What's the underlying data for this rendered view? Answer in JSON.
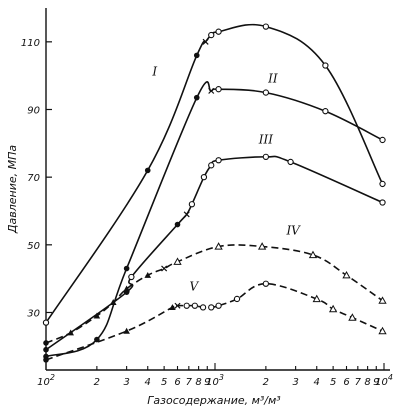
{
  "chart_data": {
    "type": "line",
    "xlabel": "Газосодержание, м³/м³",
    "ylabel": "Давление, МПа",
    "xscale": "log",
    "xlim": [
      100,
      10000
    ],
    "ylim": [
      13,
      120
    ],
    "grid": false,
    "legend": "none",
    "x_ticks": [
      {
        "value": 100,
        "base": "10",
        "exp": "2"
      },
      {
        "value": 200,
        "label": "2"
      },
      {
        "value": 300,
        "label": "3"
      },
      {
        "value": 400,
        "label": "4"
      },
      {
        "value": 500,
        "label": "5"
      },
      {
        "value": 600,
        "label": "6"
      },
      {
        "value": 700,
        "label": "7"
      },
      {
        "value": 800,
        "label": "8"
      },
      {
        "value": 900,
        "label": "9"
      },
      {
        "value": 1000,
        "base": "10",
        "exp": "3"
      },
      {
        "value": 2000,
        "label": "2"
      },
      {
        "value": 3000,
        "label": "3"
      },
      {
        "value": 4000,
        "label": "4"
      },
      {
        "value": 5000,
        "label": "5"
      },
      {
        "value": 6000,
        "label": "6"
      },
      {
        "value": 7000,
        "label": "7"
      },
      {
        "value": 8000,
        "label": "8"
      },
      {
        "value": 9000,
        "label": "9"
      },
      {
        "value": 10000,
        "base": "10",
        "exp": "4"
      }
    ],
    "y_ticks": [
      30,
      50,
      70,
      90,
      110
    ],
    "series": [
      {
        "name": "I",
        "style": "solid",
        "label_at": [
          440,
          100
        ],
        "points": [
          {
            "x": 100,
            "y": 27,
            "m": "o"
          },
          {
            "x": 400,
            "y": 72,
            "m": "fill"
          },
          {
            "x": 780,
            "y": 106,
            "m": "fill"
          },
          {
            "x": 880,
            "y": 110,
            "m": "x"
          },
          {
            "x": 950,
            "y": 112,
            "m": "o"
          },
          {
            "x": 1050,
            "y": 113,
            "m": "o"
          },
          {
            "x": 2000,
            "y": 114.5,
            "m": "o"
          },
          {
            "x": 4500,
            "y": 103,
            "m": "o"
          },
          {
            "x": 9800,
            "y": 68,
            "m": "o"
          }
        ]
      },
      {
        "name": "II",
        "style": "solid",
        "label_at": [
          2200,
          98
        ],
        "points": [
          {
            "x": 100,
            "y": 17,
            "m": "fill"
          },
          {
            "x": 200,
            "y": 22,
            "m": "fill"
          },
          {
            "x": 300,
            "y": 43,
            "m": "fill"
          },
          {
            "x": 780,
            "y": 93.5,
            "m": "fill"
          },
          {
            "x": 950,
            "y": 95.5,
            "m": "x"
          },
          {
            "x": 1050,
            "y": 96,
            "m": "o"
          },
          {
            "x": 2000,
            "y": 95,
            "m": "o"
          },
          {
            "x": 4500,
            "y": 89.5,
            "m": "o"
          },
          {
            "x": 9800,
            "y": 81,
            "m": "o"
          }
        ]
      },
      {
        "name": "III",
        "style": "solid",
        "label_at": [
          2000,
          80
        ],
        "points": [
          {
            "x": 100,
            "y": 19,
            "m": "fill"
          },
          {
            "x": 300,
            "y": 36,
            "m": "fill"
          },
          {
            "x": 320,
            "y": 40.5,
            "m": "o"
          },
          {
            "x": 600,
            "y": 56,
            "m": "fill"
          },
          {
            "x": 680,
            "y": 59,
            "m": "x"
          },
          {
            "x": 730,
            "y": 62,
            "m": "o"
          },
          {
            "x": 860,
            "y": 70,
            "m": "o"
          },
          {
            "x": 950,
            "y": 73.5,
            "m": "o"
          },
          {
            "x": 1050,
            "y": 75,
            "m": "o"
          },
          {
            "x": 2000,
            "y": 76,
            "m": "o"
          },
          {
            "x": 2800,
            "y": 74.5,
            "m": "o"
          },
          {
            "x": 9800,
            "y": 62.5,
            "m": "o"
          }
        ]
      },
      {
        "name": "IV",
        "style": "dashed",
        "label_at": [
          2900,
          53
        ],
        "points": [
          {
            "x": 100,
            "y": 21,
            "m": "fill"
          },
          {
            "x": 140,
            "y": 24,
            "m": "fill"
          },
          {
            "x": 200,
            "y": 29,
            "m": "fill"
          },
          {
            "x": 250,
            "y": 33,
            "m": "fill"
          },
          {
            "x": 300,
            "y": 37,
            "m": "fill"
          },
          {
            "x": 400,
            "y": 41,
            "m": "fill"
          },
          {
            "x": 500,
            "y": 43,
            "m": "x"
          },
          {
            "x": 600,
            "y": 45,
            "m": "tri"
          },
          {
            "x": 1050,
            "y": 49.5,
            "m": "tri"
          },
          {
            "x": 1900,
            "y": 49.5,
            "m": "tri"
          },
          {
            "x": 3800,
            "y": 47,
            "m": "tri"
          },
          {
            "x": 6000,
            "y": 41,
            "m": "tri"
          },
          {
            "x": 9800,
            "y": 33.5,
            "m": "tri"
          }
        ]
      },
      {
        "name": "V",
        "style": "dashed",
        "label_at": [
          750,
          36.5
        ],
        "points": [
          {
            "x": 100,
            "y": 16,
            "m": "fill"
          },
          {
            "x": 300,
            "y": 24.5,
            "m": "fill"
          },
          {
            "x": 560,
            "y": 31.5,
            "m": "fill"
          },
          {
            "x": 600,
            "y": 32,
            "m": "x"
          },
          {
            "x": 680,
            "y": 32,
            "m": "o"
          },
          {
            "x": 760,
            "y": 32,
            "m": "o"
          },
          {
            "x": 850,
            "y": 31.5,
            "m": "o"
          },
          {
            "x": 950,
            "y": 31.5,
            "m": "o"
          },
          {
            "x": 1050,
            "y": 32,
            "m": "o"
          },
          {
            "x": 1350,
            "y": 34,
            "m": "o"
          },
          {
            "x": 2000,
            "y": 38.5,
            "m": "o"
          },
          {
            "x": 4000,
            "y": 34,
            "m": "tri"
          },
          {
            "x": 5000,
            "y": 31,
            "m": "tri"
          },
          {
            "x": 6500,
            "y": 28.5,
            "m": "tri"
          },
          {
            "x": 9800,
            "y": 24.5,
            "m": "tri"
          }
        ]
      }
    ]
  }
}
